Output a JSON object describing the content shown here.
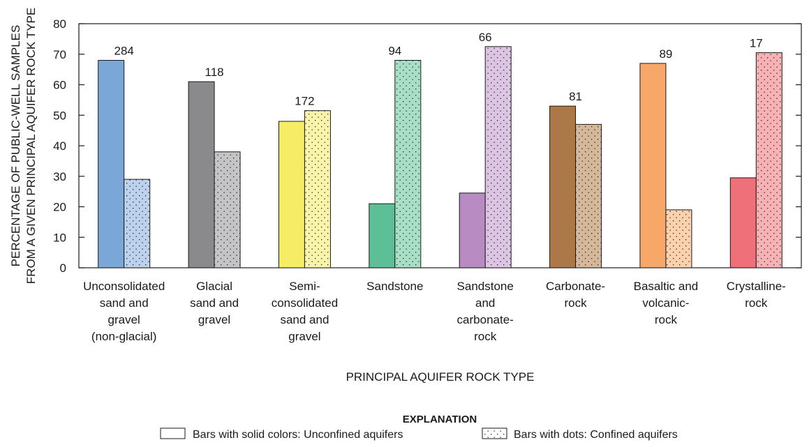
{
  "chart_data": {
    "type": "bar",
    "ylabel": [
      "PERCENTAGE OF PUBLIC-WELL SAMPLES",
      "FROM A GIVEN PRINCIPAL AQUIFER ROCK TYPE"
    ],
    "xlabel": "PRINCIPAL AQUIFER ROCK TYPE",
    "ylim": [
      0,
      80
    ],
    "yticks": [
      0,
      10,
      20,
      30,
      40,
      50,
      60,
      70,
      80
    ],
    "categories": [
      {
        "lines": [
          "Unconsolidated",
          "sand and",
          "gravel",
          "(non-glacial)"
        ],
        "unconfined": 68,
        "confined": 29,
        "count": "284",
        "color": "#7aa6d8",
        "light": "#bcd2ec"
      },
      {
        "lines": [
          "Glacial",
          "sand and",
          "gravel"
        ],
        "unconfined": 61,
        "confined": 38,
        "count": "118",
        "color": "#8a8a8c",
        "light": "#c4c4c6"
      },
      {
        "lines": [
          "Semi-",
          "consolidated",
          "sand and",
          "gravel"
        ],
        "unconfined": 48,
        "confined": 51.5,
        "count": "172",
        "color": "#f7ec66",
        "light": "#fbf5ab"
      },
      {
        "lines": [
          "Sandstone"
        ],
        "unconfined": 21,
        "confined": 68,
        "count": "94",
        "color": "#5dbf96",
        "light": "#a9dec6"
      },
      {
        "lines": [
          "Sandstone",
          "and",
          "carbonate-",
          "rock"
        ],
        "unconfined": 24.5,
        "confined": 72.5,
        "count": "66",
        "color": "#b88cc2",
        "light": "#dcc4e3"
      },
      {
        "lines": [
          "Carbonate-",
          "rock"
        ],
        "unconfined": 53,
        "confined": 47,
        "count": "81",
        "color": "#ad7848",
        "light": "#d5b89a"
      },
      {
        "lines": [
          "Basaltic and",
          "volcanic-",
          "rock"
        ],
        "unconfined": 67,
        "confined": 19,
        "count": "89",
        "color": "#f7a868",
        "light": "#fbd2ad"
      },
      {
        "lines": [
          "Crystalline-",
          "rock"
        ],
        "unconfined": 29.5,
        "confined": 70.5,
        "count": "17",
        "color": "#ef7078",
        "light": "#f8b2b5"
      }
    ],
    "series": [
      {
        "name": "Bars with solid colors: Unconfined aquifers",
        "key": "unconfined"
      },
      {
        "name": "Bars with dots: Confined aquifers",
        "key": "confined"
      }
    ],
    "legend": {
      "title": "EXPLANATION",
      "placement": "bottom-center"
    },
    "grid": false
  }
}
